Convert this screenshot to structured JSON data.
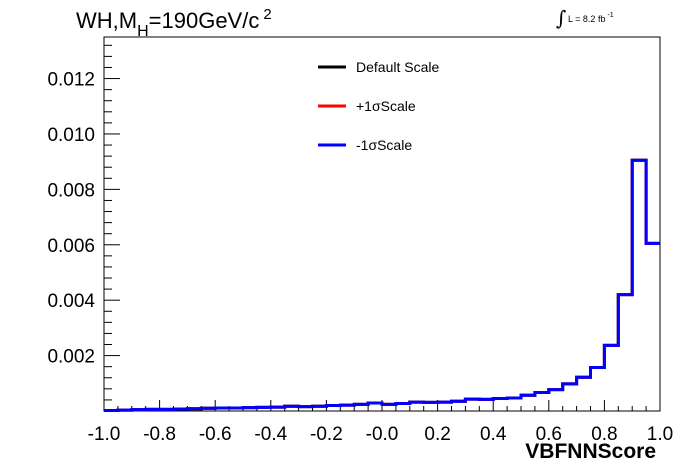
{
  "title": {
    "main": "WH,M",
    "subscript": "H",
    "rest": "=190GeV/c",
    "superscript": "2"
  },
  "luminosity": {
    "integral_symbol": "∫",
    "text": "L = 8.2 fb",
    "superscript": "-1"
  },
  "chart_data": {
    "type": "line",
    "step": true,
    "xlabel": "VBFNNScore",
    "ylabel": "",
    "xlim": [
      -1.0,
      1.0
    ],
    "ylim": [
      0,
      0.0135
    ],
    "x_ticks": [
      "-1.0",
      "-0.8",
      "-0.6",
      "-0.4",
      "-0.2",
      "-0.0",
      "0.2",
      "0.4",
      "0.6",
      "0.8",
      "1.0"
    ],
    "y_ticks": [
      "0.002",
      "0.004",
      "0.006",
      "0.008",
      "0.010",
      "0.012"
    ],
    "bin_edges": [
      -1.0,
      -0.95,
      -0.9,
      -0.85,
      -0.8,
      -0.75,
      -0.7,
      -0.65,
      -0.6,
      -0.55,
      -0.5,
      -0.45,
      -0.4,
      -0.35,
      -0.3,
      -0.25,
      -0.2,
      -0.15,
      -0.1,
      -0.05,
      0.0,
      0.05,
      0.1,
      0.15,
      0.2,
      0.25,
      0.3,
      0.35,
      0.4,
      0.45,
      0.5,
      0.55,
      0.6,
      0.65,
      0.7,
      0.75,
      0.8,
      0.85,
      0.9,
      0.95,
      1.0
    ],
    "series": [
      {
        "name": "Default Scale",
        "color": "#000000",
        "values": [
          2e-05,
          3e-05,
          5e-05,
          6e-05,
          6e-05,
          7e-05,
          8e-05,
          0.0001,
          0.00011,
          0.00011,
          0.00012,
          0.00013,
          0.00014,
          0.00017,
          0.00016,
          0.00017,
          0.0002,
          0.00021,
          0.00024,
          0.00029,
          0.00024,
          0.00027,
          0.00032,
          0.00031,
          0.00032,
          0.00035,
          0.00043,
          0.00042,
          0.00045,
          0.00047,
          0.00057,
          0.00067,
          0.00077,
          0.00098,
          0.00122,
          0.00157,
          0.00237,
          0.0042,
          0.00905,
          0.00605
        ]
      },
      {
        "name": "+1σScale",
        "color": "#ff0000",
        "values": [
          2e-05,
          3e-05,
          5e-05,
          6e-05,
          6e-05,
          7e-05,
          8e-05,
          0.0001,
          0.00011,
          0.00011,
          0.00012,
          0.00013,
          0.00014,
          0.00017,
          0.00016,
          0.00017,
          0.0002,
          0.00021,
          0.00024,
          0.00029,
          0.00024,
          0.00027,
          0.00032,
          0.00031,
          0.00032,
          0.00035,
          0.00043,
          0.00042,
          0.00045,
          0.00047,
          0.00057,
          0.00067,
          0.00077,
          0.00098,
          0.00122,
          0.00157,
          0.00237,
          0.0042,
          0.00905,
          0.00605
        ]
      },
      {
        "name": "-1σScale",
        "color": "#0000ff",
        "values": [
          2e-05,
          3e-05,
          5e-05,
          6e-05,
          6e-05,
          7e-05,
          8e-05,
          0.0001,
          0.00011,
          0.00011,
          0.00012,
          0.00013,
          0.00014,
          0.00017,
          0.00016,
          0.00017,
          0.0002,
          0.00021,
          0.00024,
          0.00029,
          0.00024,
          0.00027,
          0.00032,
          0.00031,
          0.00032,
          0.00035,
          0.00043,
          0.00042,
          0.00045,
          0.00047,
          0.00057,
          0.00067,
          0.00077,
          0.00098,
          0.00122,
          0.00157,
          0.00237,
          0.0042,
          0.00905,
          0.00605
        ]
      }
    ],
    "legend": "top-center",
    "grid": false
  }
}
